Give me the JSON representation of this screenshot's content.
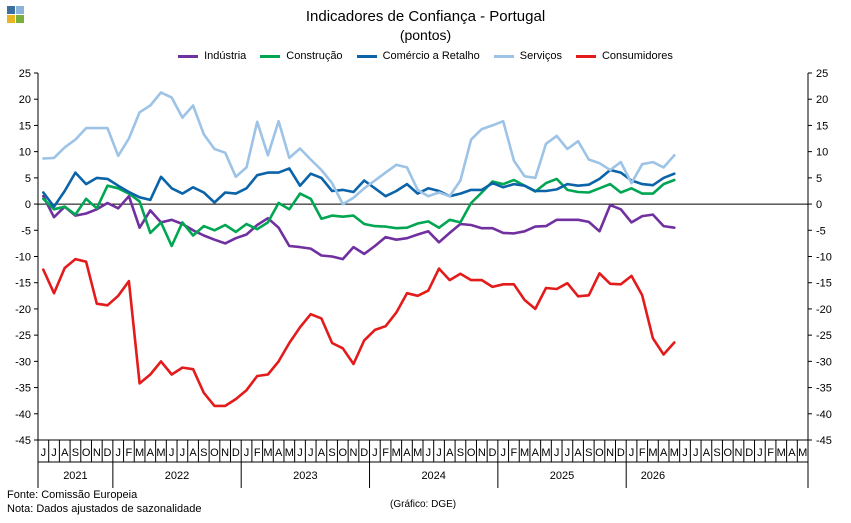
{
  "chart_data": {
    "type": "line",
    "title": "Indicadores de Confiança - Portugal",
    "subtitle": "(pontos)",
    "xlabel": "",
    "ylabel": "",
    "ylim": [
      -45,
      25
    ],
    "yticks": [
      25,
      20,
      15,
      10,
      5,
      0,
      -5,
      -10,
      -15,
      -20,
      -25,
      -30,
      -35,
      -40,
      -45
    ],
    "grid": false,
    "legend_position": "top",
    "month_labels": [
      "J",
      "J",
      "A",
      "S",
      "O",
      "N",
      "D",
      "J",
      "F",
      "M",
      "A",
      "M",
      "J",
      "J",
      "A",
      "S",
      "O",
      "N",
      "D",
      "J",
      "F",
      "M",
      "A",
      "M",
      "J",
      "J",
      "A",
      "S",
      "O",
      "N",
      "D",
      "J",
      "F",
      "M",
      "A",
      "M",
      "J",
      "J",
      "A",
      "S",
      "O",
      "N",
      "D",
      "J",
      "F",
      "M",
      "A",
      "M",
      "J",
      "J",
      "A",
      "S",
      "O",
      "N",
      "D",
      "J",
      "F",
      "M",
      "A",
      "M",
      "J",
      "J",
      "A",
      "S",
      "O",
      "N",
      "D",
      "J",
      "F",
      "M",
      "A",
      "M"
    ],
    "years": [
      {
        "label": "2021",
        "start": 0,
        "end": 7
      },
      {
        "label": "2022",
        "start": 7,
        "end": 19
      },
      {
        "label": "2023",
        "start": 19,
        "end": 31
      },
      {
        "label": "2024",
        "start": 31,
        "end": 43
      },
      {
        "label": "2025",
        "start": 43,
        "end": 55
      },
      {
        "label": "2026",
        "start": 55,
        "end": 60
      }
    ],
    "series": [
      {
        "name": "Indústria",
        "color": "#7030A0",
        "values": [
          1.5,
          -2.5,
          -0.5,
          -2.2,
          -1.8,
          -1.0,
          0.2,
          -0.8,
          1.5,
          -4.5,
          -1.2,
          -3.5,
          -3.0,
          -3.8,
          -5.0,
          -6.0,
          -6.8,
          -7.5,
          -6.5,
          -5.8,
          -4.0,
          -2.7,
          -4.5,
          -8.0,
          -8.2,
          -8.5,
          -9.8,
          -10.0,
          -10.5,
          -8.2,
          -9.5,
          -8.0,
          -6.3,
          -6.8,
          -6.5,
          -5.8,
          -5.2,
          -7.3,
          -5.5,
          -3.8,
          -4.0,
          -4.6,
          -4.6,
          -5.5,
          -5.6,
          -5.2,
          -4.3,
          -4.2,
          -3.0,
          -3.0,
          -3.0,
          -3.4,
          -5.2,
          -0.2,
          -1.0,
          -3.5,
          -2.3,
          -2.0,
          -4.2,
          -4.5
        ]
      },
      {
        "name": "Construção",
        "color": "#00A651",
        "values": [
          1.0,
          -1.0,
          -0.5,
          -2.0,
          1.0,
          -0.8,
          3.5,
          3.0,
          2.0,
          0.5,
          -5.5,
          -3.5,
          -8.0,
          -3.5,
          -6.0,
          -4.2,
          -5.0,
          -4.0,
          -5.3,
          -3.8,
          -4.8,
          -3.5,
          0.2,
          -1.0,
          2.0,
          1.0,
          -2.8,
          -2.2,
          -2.4,
          -2.2,
          -3.8,
          -4.2,
          -4.3,
          -4.6,
          -4.5,
          -3.7,
          -3.3,
          -4.5,
          -3.0,
          -3.5,
          0.2,
          2.2,
          4.3,
          3.8,
          4.6,
          3.5,
          2.4,
          4.0,
          4.8,
          2.7,
          2.3,
          2.2,
          3.0,
          3.8,
          2.2,
          3.0,
          2.0,
          2.0,
          3.8,
          4.6
        ]
      },
      {
        "name": "Comércio a Retalho",
        "color": "#0B63A8",
        "values": [
          2.2,
          -0.5,
          2.5,
          6.0,
          3.8,
          5.0,
          4.8,
          3.5,
          2.3,
          1.3,
          0.8,
          5.2,
          3.0,
          2.0,
          3.2,
          2.2,
          0.3,
          2.2,
          2.0,
          3.0,
          5.5,
          6.0,
          6.0,
          6.8,
          3.5,
          5.8,
          5.0,
          2.5,
          2.7,
          2.3,
          4.5,
          3.0,
          1.5,
          2.5,
          3.8,
          2.0,
          3.0,
          2.5,
          1.5,
          2.0,
          2.7,
          2.7,
          4.0,
          3.2,
          3.8,
          3.5,
          2.5,
          2.5,
          2.8,
          3.8,
          3.5,
          3.7,
          4.8,
          6.5,
          6.0,
          4.5,
          3.8,
          3.6,
          5.0,
          5.8
        ]
      },
      {
        "name": "Serviços",
        "color": "#9DC3E6",
        "values": [
          8.7,
          8.8,
          10.8,
          12.3,
          14.5,
          14.5,
          14.5,
          9.2,
          12.5,
          17.5,
          18.8,
          21.3,
          20.3,
          16.5,
          18.8,
          13.3,
          10.5,
          9.8,
          5.2,
          7.0,
          15.7,
          9.3,
          15.8,
          8.8,
          10.6,
          8.5,
          6.5,
          4.0,
          0.0,
          1.2,
          3.0,
          4.5,
          6.0,
          7.5,
          7.0,
          2.7,
          1.5,
          2.2,
          1.5,
          4.5,
          12.3,
          14.3,
          15.0,
          15.8,
          8.3,
          5.3,
          5.0,
          11.5,
          13.0,
          10.5,
          12.0,
          8.5,
          7.8,
          6.5,
          8.0,
          4.0,
          7.6,
          8.0,
          7.0,
          9.3
        ]
      },
      {
        "name": "Consumidores",
        "color": "#E31B1B",
        "values": [
          -12.5,
          -17.0,
          -12.2,
          -10.5,
          -11.0,
          -19.0,
          -19.3,
          -17.5,
          -14.7,
          -34.2,
          -32.5,
          -30.0,
          -32.5,
          -31.2,
          -31.5,
          -36.0,
          -38.5,
          -38.5,
          -37.2,
          -35.5,
          -32.8,
          -32.5,
          -30.0,
          -26.5,
          -23.5,
          -21.0,
          -21.8,
          -26.5,
          -27.5,
          -30.5,
          -26.0,
          -24.0,
          -23.3,
          -20.7,
          -17.0,
          -17.5,
          -16.5,
          -12.3,
          -14.5,
          -13.3,
          -14.5,
          -14.5,
          -15.8,
          -15.3,
          -15.3,
          -18.3,
          -20.0,
          -16.0,
          -16.2,
          -15.1,
          -17.6,
          -17.4,
          -13.2,
          -15.2,
          -15.3,
          -13.7,
          -17.4,
          -25.6,
          -28.7,
          -26.4
        ]
      }
    ]
  },
  "footer": {
    "source": "Fonte: Comissão Europeia",
    "note": "Nota: Dados ajustados de sazonalidade",
    "credit": "(Gráfico: DGE)"
  },
  "logo_colors": [
    "#3C6E9F",
    "#8BB3D9",
    "#E8B421",
    "#7AAE3D"
  ]
}
